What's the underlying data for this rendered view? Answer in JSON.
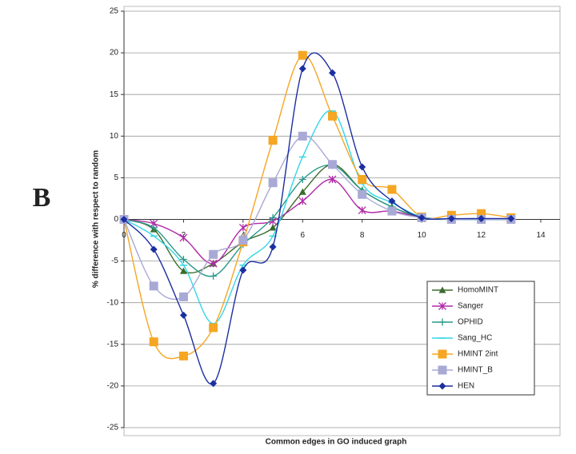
{
  "chart_data": {
    "type": "line",
    "panel_label": "B",
    "x_label": "Common edges in GO induced graph",
    "y_label": "% difference with respect to random",
    "x": [
      0,
      1,
      2,
      3,
      4,
      5,
      6,
      7,
      8,
      9,
      10,
      11,
      12,
      13
    ],
    "xlim": [
      0,
      14
    ],
    "xticks": [
      0,
      2,
      4,
      6,
      8,
      10,
      12,
      14
    ],
    "ylim": [
      -25,
      25
    ],
    "yticks": [
      -25,
      -20,
      -15,
      -10,
      -5,
      0,
      5,
      10,
      15,
      20,
      25
    ],
    "grid": true,
    "smooth": true,
    "legend_position": "lower right",
    "series": [
      {
        "name": "HomoMINT",
        "color": "#3a6b2a",
        "marker": "triangle",
        "values": [
          0,
          -1.2,
          -6.2,
          -5.3,
          -2.7,
          -1,
          3.3,
          6.6,
          3.5,
          1.5,
          0.2,
          0,
          0,
          0
        ]
      },
      {
        "name": "Sanger",
        "color": "#b02aa8",
        "marker": "star",
        "values": [
          0,
          -0.5,
          -2.2,
          -5.3,
          -1,
          -0.2,
          2.2,
          4.8,
          1.1,
          1,
          0.2,
          0,
          0,
          0
        ]
      },
      {
        "name": "OPHID",
        "color": "#2a9a8a",
        "marker": "plus",
        "values": [
          0,
          -1,
          -4.8,
          -6.8,
          -3,
          0.2,
          4.8,
          6.5,
          3.5,
          1.5,
          0.3,
          0,
          0,
          0
        ]
      },
      {
        "name": "Sang_HC",
        "color": "#33d6e6",
        "marker": "dash",
        "values": [
          0,
          -2,
          -5.5,
          -12.5,
          -5.5,
          -2,
          7.5,
          13,
          4.3,
          2,
          0.3,
          0,
          0,
          0
        ]
      },
      {
        "name": "HMINT 2int",
        "color": "#f5a623",
        "marker": "square",
        "values": [
          0,
          -14.7,
          -16.4,
          -13,
          -2.7,
          9.5,
          19.7,
          12.4,
          4.8,
          3.6,
          0.3,
          0.5,
          0.7,
          0.2
        ]
      },
      {
        "name": "HMINT_B",
        "color": "#a9a9d6",
        "marker": "square",
        "values": [
          0,
          -8,
          -9.3,
          -4.2,
          -2.5,
          4.4,
          10,
          6.6,
          3,
          1,
          0.2,
          0,
          0,
          0
        ]
      },
      {
        "name": "HEN",
        "color": "#1c2fa0",
        "marker": "diamond",
        "values": [
          0,
          -3.6,
          -11.5,
          -19.7,
          -6.1,
          -3.3,
          18.1,
          17.6,
          6.3,
          2.2,
          0.2,
          0.1,
          0.1,
          0.1
        ]
      }
    ]
  }
}
